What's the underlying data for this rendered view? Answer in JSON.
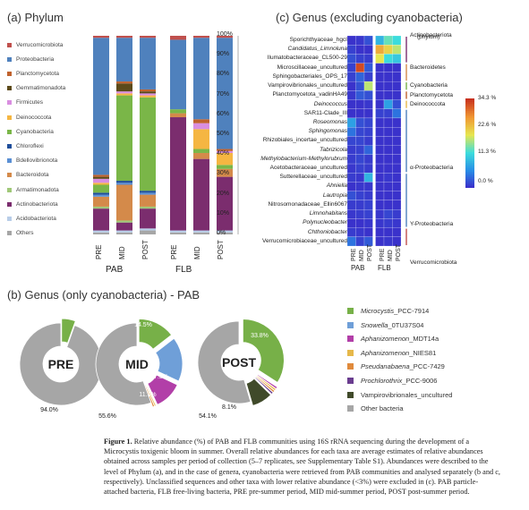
{
  "panel_a": {
    "title": "(a) Phylum",
    "legend": [
      {
        "label": "Verrucomicrobiota",
        "color": "#c0504d"
      },
      {
        "label": "Proteobacteria",
        "color": "#4f81bd"
      },
      {
        "label": "Planctomycetota",
        "color": "#c0622d"
      },
      {
        "label": "Gemmatimonadota",
        "color": "#5c4a1a"
      },
      {
        "label": "Firmicutes",
        "color": "#d98ee0"
      },
      {
        "label": "Deinococcota",
        "color": "#f5b642"
      },
      {
        "label": "Cyanobacteria",
        "color": "#7ab648"
      },
      {
        "label": "Chloroflexi",
        "color": "#1f4e9a"
      },
      {
        "label": "Bdellovibrionota",
        "color": "#5a8fd4"
      },
      {
        "label": "Bacteroidota",
        "color": "#d48a4a"
      },
      {
        "label": "Armatimonadota",
        "color": "#a0c878"
      },
      {
        "label": "Actinobacteriota",
        "color": "#7b2d6e"
      },
      {
        "label": "Acidobacteriota",
        "color": "#b8cde8"
      },
      {
        "label": "Others",
        "color": "#a6a6a6"
      }
    ],
    "yticks": [
      "100%",
      "90%",
      "80%",
      "70%",
      "60%",
      "50%",
      "40%",
      "30%",
      "20%",
      "10%",
      "0%"
    ],
    "bar_labels": [
      "PRE",
      "MID",
      "POST",
      "PRE",
      "MID",
      "POST"
    ],
    "groups": [
      "PAB",
      "FLB"
    ]
  },
  "panel_b": {
    "title": "(b) Genus (only cyanobacteria) - PAB",
    "pies": [
      {
        "label": "PRE",
        "labels": [
          "5.4%",
          "94.0%"
        ]
      },
      {
        "label": "MID",
        "labels": [
          "14.5%",
          "17.5%",
          "11.1%",
          "55.6%"
        ]
      },
      {
        "label": "POST",
        "labels": [
          "33.8%",
          "8.1%",
          "54.1%"
        ]
      }
    ],
    "legend": [
      {
        "label": "Microcystis_PCC-7914",
        "color": "#77b048"
      },
      {
        "label": "Snowella_0TU37S04",
        "color": "#6f9fd8"
      },
      {
        "label": "Aphanizomenon_MDT14a",
        "color": "#b23fa8"
      },
      {
        "label": "Aphanizomenon_NIES81",
        "color": "#e6b84a"
      },
      {
        "label": "Pseudanabaena_PCC-7429",
        "color": "#e08a3c"
      },
      {
        "label": "Prochlorothrix_PCC-9006",
        "color": "#6a3d8f"
      },
      {
        "label": "Vampirovibrionales_uncultured",
        "color": "#404a2a"
      },
      {
        "label": "Other bacteria",
        "color": "#a6a6a6"
      }
    ]
  },
  "panel_c": {
    "title": "(c) Genus (excluding cyanobacteria)",
    "phylum_header": "(phylum)",
    "genera": [
      "Sporichthyaceae_hgcI",
      "Candidatus_Limnoluna",
      "Ilumatobacteraceae_CL500-29",
      "Microscillaceae_uncultured",
      "Sphingobacteriales_OPS_17",
      "Vampirovibrionales_uncultured",
      "Planctomycetota_vadinHA49",
      "Deinococcus",
      "SAR11-Clade_III",
      "Roseomonas",
      "Sphingomonas",
      "Rhizobiales_incertae_uncultured",
      "Tabrizicola",
      "Methylobacterium-Methylorubrum",
      "Acetobacteraceae_uncultured",
      "Sutterellaceae_uncultured",
      "Ahniella",
      "Lautropia",
      "Nitrosomonadaceae_Ellin6067",
      "Limnohabitans",
      "Polynucleobacter",
      "Chthoniobacter",
      "Verrucomicrobiaceae_uncultured"
    ],
    "phyla": [
      "Actinobacteriota",
      "Bacteroidetes",
      "Cyanobacteria",
      "Planctomycetota",
      "Deinococcota",
      "α-Proteobacteria",
      "Y-Proteobacteria",
      "Verrucomicrobiota"
    ],
    "colorbar_ticks": [
      "34.3 %",
      "22.6 %",
      "11.3 %",
      "0.0 %"
    ],
    "col_labels": [
      "PRE",
      "MID",
      "POST",
      "PRE",
      "MID",
      "POST"
    ],
    "groups": [
      "PAB",
      "FLB"
    ],
    "heatmap": [
      [
        0.02,
        0.03,
        0.08,
        0.3,
        0.45,
        0.4
      ],
      [
        0.05,
        0.02,
        0.02,
        0.75,
        0.65,
        0.55
      ],
      [
        0.08,
        0.05,
        0.04,
        0.6,
        0.4,
        0.35
      ],
      [
        0.05,
        0.95,
        0.1,
        0.02,
        0.02,
        0.02
      ],
      [
        0.05,
        0.12,
        0.05,
        0.02,
        0.02,
        0.02
      ],
      [
        0.02,
        0.08,
        0.55,
        0.02,
        0.02,
        0.02
      ],
      [
        0.03,
        0.1,
        0.08,
        0.02,
        0.02,
        0.02
      ],
      [
        0.02,
        0.02,
        0.03,
        0.02,
        0.25,
        0.08
      ],
      [
        0.02,
        0.02,
        0.02,
        0.05,
        0.05,
        0.15
      ],
      [
        0.25,
        0.08,
        0.06,
        0.02,
        0.02,
        0.02
      ],
      [
        0.15,
        0.06,
        0.05,
        0.02,
        0.02,
        0.02
      ],
      [
        0.06,
        0.06,
        0.04,
        0.02,
        0.02,
        0.02
      ],
      [
        0.04,
        0.05,
        0.12,
        0.02,
        0.02,
        0.02
      ],
      [
        0.04,
        0.06,
        0.04,
        0.02,
        0.02,
        0.02
      ],
      [
        0.03,
        0.05,
        0.04,
        0.02,
        0.02,
        0.02
      ],
      [
        0.04,
        0.03,
        0.3,
        0.02,
        0.03,
        0.02
      ],
      [
        0.02,
        0.03,
        0.03,
        0.02,
        0.02,
        0.02
      ],
      [
        0.08,
        0.05,
        0.04,
        0.02,
        0.02,
        0.02
      ],
      [
        0.04,
        0.04,
        0.05,
        0.02,
        0.02,
        0.02
      ],
      [
        0.03,
        0.04,
        0.05,
        0.03,
        0.06,
        0.04
      ],
      [
        0.02,
        0.02,
        0.03,
        0.03,
        0.04,
        0.03
      ],
      [
        0.04,
        0.03,
        0.02,
        0.02,
        0.02,
        0.02
      ],
      [
        0.15,
        0.05,
        0.1,
        0.02,
        0.03,
        0.02
      ]
    ]
  },
  "caption": {
    "label": "Figure 1.",
    "text": "Relative abundance (%) of PAB and FLB communities using 16S rRNA sequencing during the development of a Microcystis toxigenic bloom in summer. Overall relative abundances for each taxa are average estimates of relative abundances obtained across samples per period of collection (5–7 replicates, see Supplementary Table S1). Abundances were described to the level of Phylum (a), and in the case of genera, cyanobacteria were retrieved from PAB communities and analysed separately (b and c, respectively). Unclassified sequences and other taxa with lower relative abundance (<3%) were excluded in (c). PAB particle-attached bacteria, FLB free-living bacteria, PRE pre-summer period, MID mid-summer period, POST post-summer period."
  },
  "chart_data": [
    {
      "type": "bar",
      "title": "(a) Phylum",
      "categories": [
        "PAB PRE",
        "PAB MID",
        "PAB POST",
        "FLB PRE",
        "FLB MID",
        "FLB POST"
      ],
      "ylim": [
        0,
        100
      ],
      "stacked": true,
      "series": [
        {
          "name": "Others",
          "values": [
            1,
            1,
            2,
            1,
            1,
            1
          ]
        },
        {
          "name": "Acidobacteriota",
          "values": [
            1,
            1,
            1,
            1,
            1,
            1
          ]
        },
        {
          "name": "Actinobacteriota",
          "values": [
            11,
            4,
            10,
            57,
            36,
            27
          ]
        },
        {
          "name": "Armatimonadota",
          "values": [
            1,
            1,
            1,
            0,
            0,
            0
          ]
        },
        {
          "name": "Bacteroidota",
          "values": [
            5,
            18,
            6,
            2,
            3,
            4
          ]
        },
        {
          "name": "Bdellovibrionota",
          "values": [
            1,
            1,
            1,
            0,
            0,
            0
          ]
        },
        {
          "name": "Chloroflexi",
          "values": [
            1,
            1,
            1,
            0,
            0,
            0
          ]
        },
        {
          "name": "Cyanobacteria",
          "values": [
            4,
            43,
            47,
            2,
            2,
            2
          ]
        },
        {
          "name": "Deinococcota",
          "values": [
            1,
            1,
            1,
            0,
            10,
            6
          ]
        },
        {
          "name": "Firmicutes",
          "values": [
            2,
            1,
            1,
            0,
            3,
            1
          ]
        },
        {
          "name": "Gemmatimonadota",
          "values": [
            1,
            4,
            1,
            0,
            0,
            0
          ]
        },
        {
          "name": "Planctomycetota",
          "values": [
            1,
            1,
            1,
            0,
            2,
            1
          ]
        },
        {
          "name": "Proteobacteria",
          "values": [
            69,
            22,
            26,
            35,
            41,
            56
          ]
        },
        {
          "name": "Verrucomicrobiota",
          "values": [
            1,
            1,
            1,
            2,
            1,
            1
          ]
        }
      ]
    },
    {
      "type": "pie",
      "title": "PRE",
      "categories": [
        "Microcystis_PCC-7914",
        "Other bacteria"
      ],
      "values": [
        5.4,
        94.0
      ]
    },
    {
      "type": "pie",
      "title": "MID",
      "categories": [
        "Microcystis_PCC-7914",
        "Snowella_0TU37S04",
        "Aphanizomenon_MDT14a",
        "Aphanizomenon_NIES81",
        "Pseudanabaena_PCC-7429",
        "Other bacteria"
      ],
      "values": [
        14.5,
        17.5,
        11.1,
        0.6,
        0.7,
        55.6
      ]
    },
    {
      "type": "pie",
      "title": "POST",
      "categories": [
        "Microcystis_PCC-7914",
        "Aphanizomenon_MDT14a",
        "Aphanizomenon_NIES81",
        "Pseudanabaena_PCC-7429",
        "Prochlorothrix_PCC-9006",
        "Vampirovibrionales_uncultured",
        "Other bacteria"
      ],
      "values": [
        33.8,
        0.8,
        0.8,
        0.8,
        0.8,
        8.1,
        54.1
      ]
    },
    {
      "type": "heatmap",
      "title": "(c) Genus (excluding cyanobacteria)",
      "x": [
        "PAB PRE",
        "PAB MID",
        "PAB POST",
        "FLB PRE",
        "FLB MID",
        "FLB POST"
      ],
      "y_source": "panel_c.genera",
      "values_source": "panel_c.heatmap",
      "range": [
        0.0,
        34.3
      ]
    }
  ]
}
